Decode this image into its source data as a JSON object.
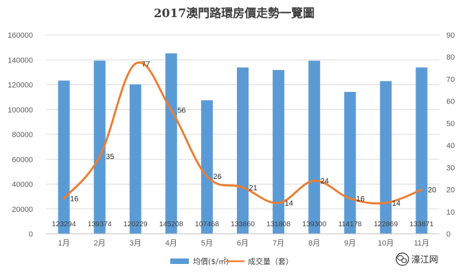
{
  "chart_data": {
    "type": "bar",
    "title": "2017澳門路環房價走勢一覽圖",
    "categories": [
      "1月",
      "2月",
      "3月",
      "4月",
      "5月",
      "6月",
      "7月",
      "8月",
      "9月",
      "10月",
      "11月"
    ],
    "series": [
      {
        "name": "均價($/㎡)",
        "type": "bar",
        "axis": "left",
        "color": "#5B9BD5",
        "values": [
          123294,
          139374,
          120229,
          145208,
          107468,
          133860,
          131808,
          139300,
          114178,
          122869,
          133871
        ],
        "value_labels": [
          "123294",
          "139374",
          "120229",
          "145208",
          "107468",
          "133860",
          "131808",
          "139300",
          "114178",
          "122869",
          "133871"
        ]
      },
      {
        "name": "成交量（套）",
        "type": "line",
        "axis": "right",
        "color": "#ED7D31",
        "values": [
          16,
          35,
          77,
          56,
          26,
          21,
          14,
          24,
          16,
          14,
          20
        ],
        "value_labels": [
          "16",
          "35",
          "77",
          "56",
          "26",
          "21",
          "14",
          "24",
          "16",
          "14",
          "20"
        ]
      }
    ],
    "y_left": {
      "range": [
        0,
        160000
      ],
      "ticks": [
        "0",
        "20000",
        "40000",
        "60000",
        "80000",
        "100000",
        "120000",
        "140000",
        "160000"
      ]
    },
    "y_right": {
      "range": [
        0,
        90
      ],
      "ticks": [
        "0",
        "10",
        "20",
        "30",
        "40",
        "50",
        "60",
        "70",
        "80",
        "90"
      ]
    },
    "grid": true,
    "legend_position": "bottom"
  },
  "watermark": {
    "text": "濠江网",
    "icon": "wechat-icon",
    "color": "#2a2a2a"
  }
}
